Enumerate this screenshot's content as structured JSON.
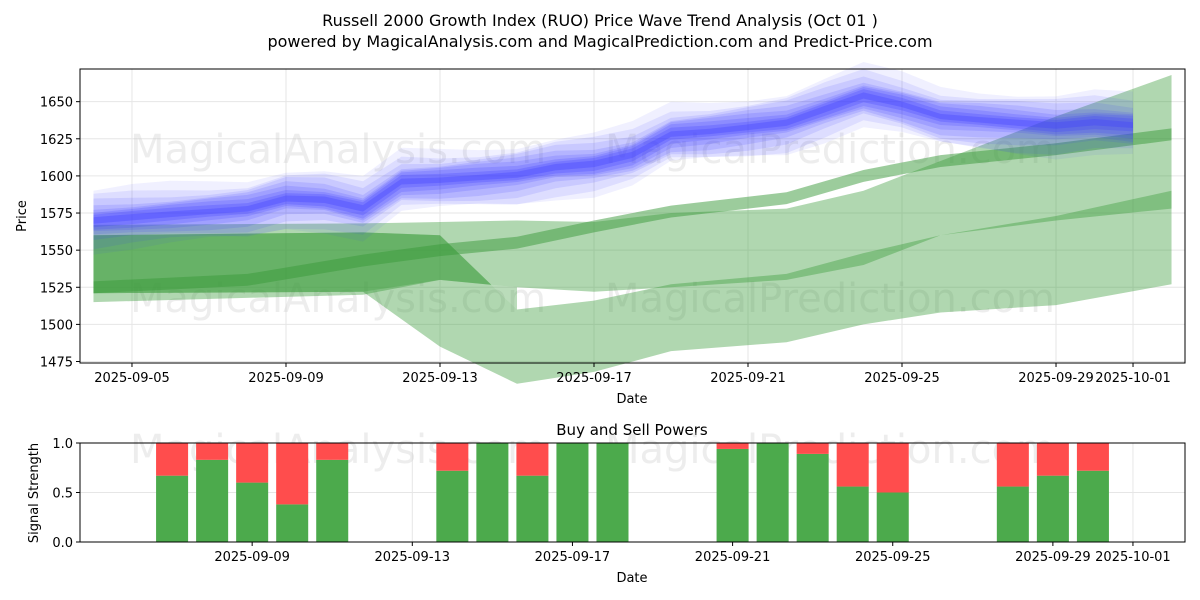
{
  "title_line1": "Russell 2000 Growth Index (RUO) Price Wave Trend Analysis (Oct 01 )",
  "title_line2": "powered by MagicalAnalysis.com and MagicalPrediction.com and Predict-Price.com",
  "watermarks": [
    "MagicalAnalysis.com",
    "MagicalPrediction.com"
  ],
  "colors": {
    "blue": "#3a3aff",
    "green": "#3a9a3a",
    "buy": "#4caa4c",
    "sell": "#ff4d4d",
    "grid": "#e6e6e6"
  },
  "chart_data": [
    {
      "type": "area",
      "name": "price-wave-trend",
      "xlabel": "Date",
      "ylabel": "Price",
      "x_start": "2025-09-04",
      "x_end": "2025-10-02",
      "ylim": [
        1474,
        1672
      ],
      "xticks": [
        "2025-09-05",
        "2025-09-09",
        "2025-09-13",
        "2025-09-17",
        "2025-09-21",
        "2025-09-25",
        "2025-09-29",
        "2025-10-01"
      ],
      "yticks": [
        1475,
        1500,
        1525,
        1550,
        1575,
        1600,
        1625,
        1650
      ],
      "grid": true,
      "series_blue_center": {
        "x": [
          "2025-09-04",
          "2025-09-05",
          "2025-09-06",
          "2025-09-07",
          "2025-09-08",
          "2025-09-09",
          "2025-09-10",
          "2025-09-11",
          "2025-09-12",
          "2025-09-13",
          "2025-09-14",
          "2025-09-15",
          "2025-09-16",
          "2025-09-17",
          "2025-09-18",
          "2025-09-19",
          "2025-09-20",
          "2025-09-21",
          "2025-09-22",
          "2025-09-23",
          "2025-09-24",
          "2025-09-25",
          "2025-09-26",
          "2025-09-27",
          "2025-09-28",
          "2025-09-29",
          "2025-09-30",
          "2025-10-01"
        ],
        "y": [
          1570,
          1572,
          1574,
          1576,
          1578,
          1585,
          1584,
          1578,
          1596,
          1597,
          1599,
          1601,
          1606,
          1608,
          1614,
          1628,
          1630,
          1633,
          1636,
          1645,
          1654,
          1648,
          1640,
          1638,
          1636,
          1634,
          1636,
          1634
        ]
      },
      "series_green_bands": [
        {
          "name": "green-band-wide-upper",
          "x": [
            "2025-09-04",
            "2025-09-11",
            "2025-09-13",
            "2025-09-15",
            "2025-09-17",
            "2025-09-19",
            "2025-09-22",
            "2025-09-24",
            "2025-09-26",
            "2025-09-29",
            "2025-10-02"
          ],
          "upper": [
            1567,
            1568,
            1569,
            1570,
            1569,
            1575,
            1578,
            1590,
            1610,
            1640,
            1668
          ],
          "lower": [
            1515,
            1520,
            1530,
            1525,
            1522,
            1525,
            1530,
            1540,
            1560,
            1570,
            1578
          ]
        },
        {
          "name": "green-band-wide-lower",
          "x": [
            "2025-09-04",
            "2025-09-11",
            "2025-09-13",
            "2025-09-15",
            "2025-09-17",
            "2025-09-19",
            "2025-09-22",
            "2025-09-24",
            "2025-09-26",
            "2025-09-29",
            "2025-10-02"
          ],
          "upper": [
            1560,
            1562,
            1560,
            1510,
            1516,
            1527,
            1534,
            1548,
            1560,
            1573,
            1590
          ],
          "lower": [
            1521,
            1522,
            1485,
            1460,
            1468,
            1482,
            1488,
            1500,
            1508,
            1513,
            1527
          ]
        }
      ],
      "series_green_center": {
        "x": [
          "2025-09-04",
          "2025-09-08",
          "2025-09-11",
          "2025-09-13",
          "2025-09-15",
          "2025-09-17",
          "2025-09-19",
          "2025-09-22",
          "2025-09-24",
          "2025-09-26",
          "2025-09-29",
          "2025-10-02"
        ],
        "y": [
          1525,
          1530,
          1543,
          1550,
          1555,
          1566,
          1576,
          1585,
          1600,
          1610,
          1618,
          1628
        ]
      }
    },
    {
      "type": "bar",
      "name": "buy-and-sell-powers",
      "title": "Buy and Sell Powers",
      "xlabel": "Date",
      "ylabel": "Signal Strength",
      "ylim": [
        0,
        1
      ],
      "yticks": [
        "0.0",
        "0.5",
        "1.0"
      ],
      "xticks": [
        "2025-09-09",
        "2025-09-13",
        "2025-09-17",
        "2025-09-21",
        "2025-09-25",
        "2025-09-29",
        "2025-10-01"
      ],
      "x_start": "2025-09-05",
      "x_end": "2025-10-02",
      "categories": [
        "2025-09-07",
        "2025-09-08",
        "2025-09-09",
        "2025-09-10",
        "2025-09-11",
        "2025-09-14",
        "2025-09-15",
        "2025-09-16",
        "2025-09-17",
        "2025-09-18",
        "2025-09-21",
        "2025-09-22",
        "2025-09-23",
        "2025-09-24",
        "2025-09-25",
        "2025-09-28",
        "2025-09-29",
        "2025-09-30"
      ],
      "series": [
        {
          "name": "buy",
          "values": [
            0.67,
            0.83,
            0.6,
            0.38,
            0.83,
            0.72,
            1.0,
            0.67,
            1.0,
            1.0,
            0.94,
            1.0,
            0.89,
            0.56,
            0.5,
            0.56,
            0.67,
            0.72
          ]
        },
        {
          "name": "sell",
          "values": [
            0.33,
            0.17,
            0.4,
            0.62,
            0.17,
            0.28,
            0.0,
            0.33,
            0.0,
            0.0,
            0.06,
            0.0,
            0.11,
            0.44,
            0.5,
            0.44,
            0.33,
            0.28
          ]
        }
      ]
    }
  ]
}
